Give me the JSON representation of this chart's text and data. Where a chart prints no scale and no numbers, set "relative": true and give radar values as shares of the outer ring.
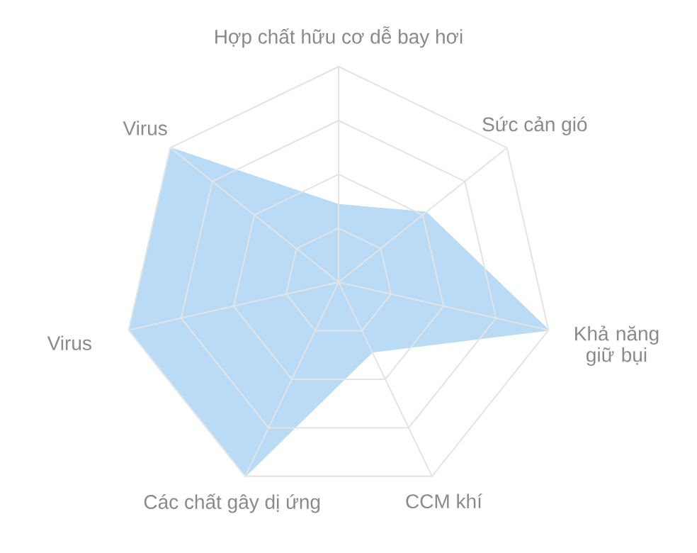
{
  "chart_data": {
    "type": "radar",
    "relative": true,
    "categories": [
      "Hợp chất hữu cơ dễ bay hơi",
      "Sức cản gió",
      "Khả năng giữ bụi",
      "CCM khí",
      "Các chất gây dị ứng",
      "Virus",
      "Virus"
    ],
    "series": [
      {
        "color": "#b9dbf6",
        "values": [
          0.36,
          0.52,
          1.0,
          0.36,
          1.0,
          1.0,
          1.0
        ]
      }
    ]
  }
}
